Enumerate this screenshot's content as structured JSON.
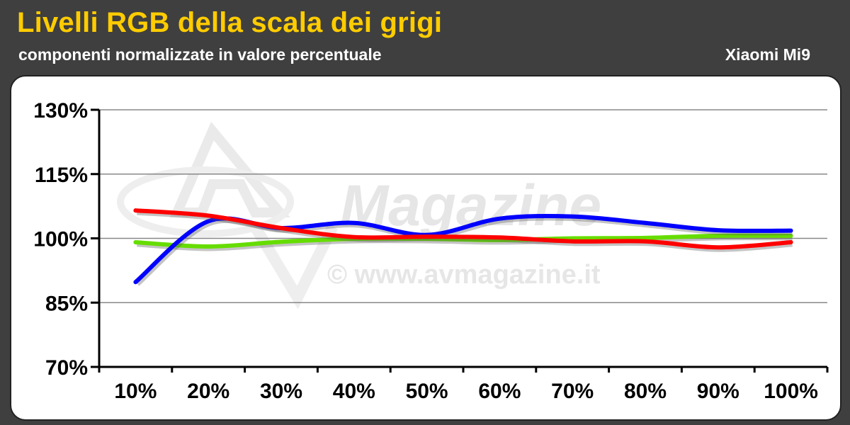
{
  "header": {
    "title": "Livelli RGB della scala dei grigi",
    "subtitle": "componenti normalizzate in valore percentuale",
    "device": "Xiaomi Mi9"
  },
  "watermark": {
    "brand": "Magazine",
    "url": "© www.avmagazine.it"
  },
  "chart_data": {
    "type": "line",
    "title": "Livelli RGB della scala dei grigi",
    "subtitle": "componenti normalizzate in valore percentuale",
    "xlabel": "",
    "ylabel": "",
    "categories": [
      "10%",
      "20%",
      "30%",
      "40%",
      "50%",
      "60%",
      "70%",
      "80%",
      "90%",
      "100%"
    ],
    "y_ticks": [
      "70%",
      "85%",
      "100%",
      "115%",
      "130%"
    ],
    "ylim": [
      70,
      130
    ],
    "grid": true,
    "legend": "none",
    "series": [
      {
        "color": "#ff0000",
        "values": [
          106.5,
          105.3,
          102.4,
          100.3,
          100.4,
          100.2,
          99.3,
          99.3,
          97.9,
          99.1
        ]
      },
      {
        "color": "#66dd00",
        "values": [
          99.1,
          98.1,
          99.2,
          99.9,
          99.9,
          99.6,
          100.0,
          100.1,
          100.6,
          100.6
        ]
      },
      {
        "color": "#0000ff",
        "values": [
          89.8,
          104.0,
          102.4,
          103.6,
          100.8,
          104.6,
          105.1,
          103.6,
          101.9,
          101.8
        ]
      }
    ]
  }
}
